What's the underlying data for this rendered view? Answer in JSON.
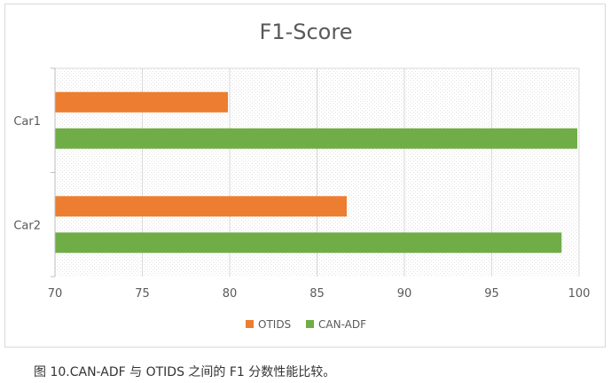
{
  "chart_data": {
    "type": "bar",
    "orientation": "horizontal",
    "title": "F1-Score",
    "categories": [
      "Car1",
      "Car2"
    ],
    "series": [
      {
        "name": "OTIDS",
        "color": "#ed7d31",
        "values": [
          79.9,
          86.7
        ]
      },
      {
        "name": "CAN-ADF",
        "color": "#70ad47",
        "values": [
          99.9,
          99.0
        ]
      }
    ],
    "xlim": [
      70,
      100
    ],
    "xticks": [
      "70",
      "75",
      "80",
      "85",
      "90",
      "95",
      "100"
    ],
    "grid": true,
    "legend": "bottom"
  },
  "caption": "图 10.CAN-ADF 与 OTIDS 之间的 F1 分数性能比较。"
}
